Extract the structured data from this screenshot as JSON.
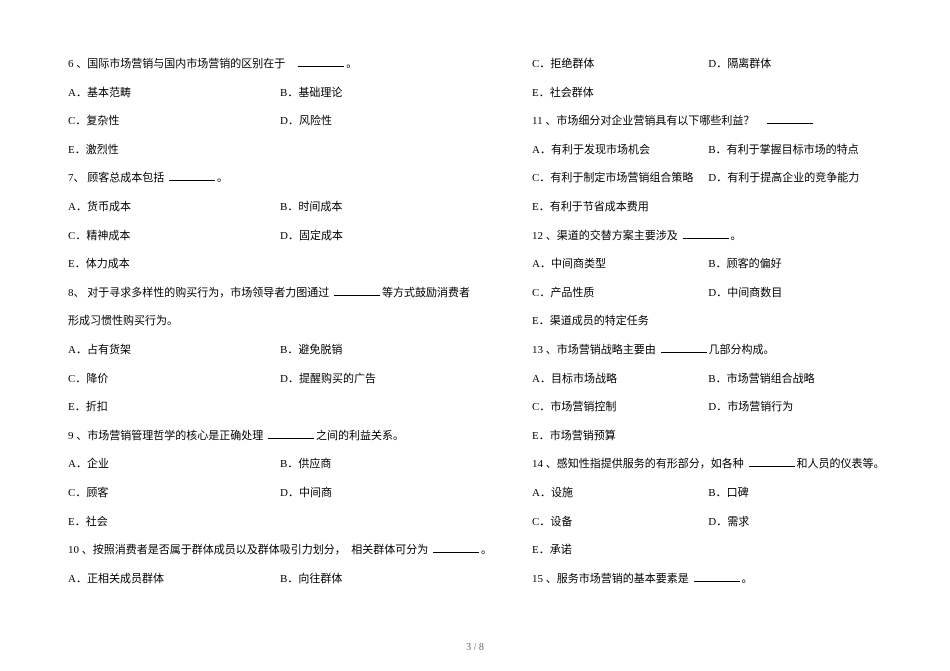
{
  "left": {
    "q6": {
      "stem_pre": "6 、国际市场营销与国内市场营销的区别在于",
      "stem_post": "。",
      "a": "A．基本范畴",
      "b": "B．基础理论",
      "c": "C．复杂性",
      "d": "D．风险性",
      "e": "E．激烈性"
    },
    "q7": {
      "stem_pre": "7、 顾客总成本包括",
      "stem_post": "。",
      "a": "A．货币成本",
      "b": "B．时间成本",
      "c": "C．精神成本",
      "d": "D．固定成本",
      "e": "E．体力成本"
    },
    "q8": {
      "stem_pre": "8、 对于寻求多样性的购买行为，市场领导者力图通过",
      "stem_post": "等方式鼓励消费者",
      "stem2": "形成习惯性购买行为。",
      "a": "A．占有货架",
      "b": "B．避免脱销",
      "c": "C．降价",
      "d": "D．提醒购买的广告",
      "e": "E．折扣"
    },
    "q9": {
      "stem_pre": "9 、市场营销管理哲学的核心是正确处理",
      "stem_post": "之间的利益关系。",
      "a": "A．企业",
      "b": "B．供应商",
      "c": "C．顾客",
      "d": "D．中间商",
      "e": "E．社会"
    },
    "q10": {
      "stem_pre": "10 、按照消费者是否属于群体成员以及群体吸引力划分，　相关群体可分为",
      "stem_post": "。",
      "a": "A．正相关成员群体",
      "b": "B．向往群体"
    }
  },
  "right": {
    "q10": {
      "c": "C．拒绝群体",
      "d": "D．隔离群体",
      "e": "E．社会群体"
    },
    "q11": {
      "stem_pre": "11 、市场细分对企业营销具有以下哪些利益？",
      "stem_post": "",
      "a": "A．有利于发现市场机会",
      "b": "B．有利于掌握目标市场的特点",
      "c": "C．有利于制定市场营销组合策略",
      "d": "D．有利于提高企业的竞争能力",
      "e": "E．有利于节省成本费用"
    },
    "q12": {
      "stem_pre": "12 、渠道的交替方案主要涉及",
      "stem_post": "。",
      "a": "A．中间商类型",
      "b": "B．顾客的偏好",
      "c": "C．产品性质",
      "d": "D．中间商数目",
      "e": "E．渠道成员的特定任务"
    },
    "q13": {
      "stem_pre": "13 、市场营销战略主要由",
      "stem_post": "几部分构成。",
      "a": "A．目标市场战略",
      "b": "B．市场营销组合战略",
      "c": "C．市场营销控制",
      "d": "D．市场营销行为",
      "e": "E．市场营销预算"
    },
    "q14": {
      "stem_pre": "14 、感知性指提供服务的有形部分，如各种",
      "stem_post": "和人员的仪表等。",
      "a": "A．设施",
      "b": "B．口碑",
      "c": "C．设备",
      "d": "D．需求",
      "e": "E．承诺"
    },
    "q15": {
      "stem_pre": "15 、服务市场营销的基本要素是",
      "stem_post": "。"
    }
  },
  "footer": "3 / 8"
}
